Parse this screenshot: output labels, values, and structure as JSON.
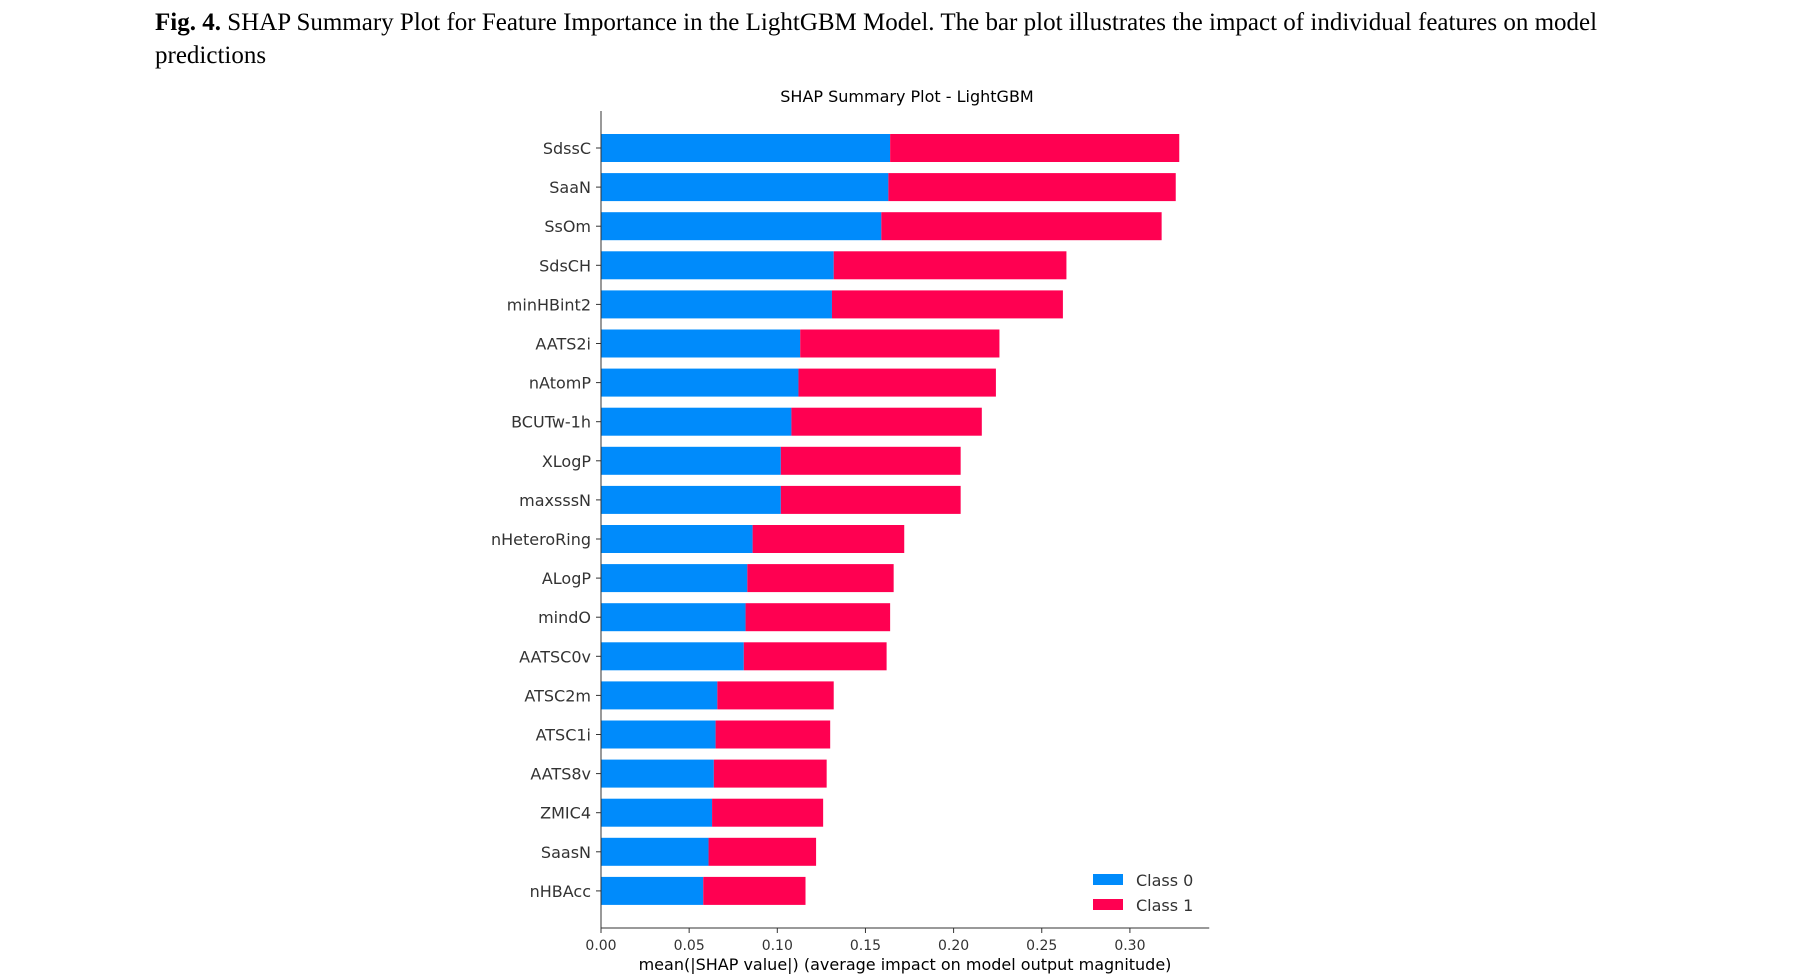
{
  "caption": {
    "label": "Fig. 4.",
    "text": "SHAP Summary Plot for Feature Importance in the LightGBM Model. The bar plot illustrates the impact of individual features on model predictions"
  },
  "chart_data": {
    "type": "bar",
    "orientation": "horizontal",
    "stacked": true,
    "title": "SHAP Summary Plot - LightGBM",
    "xlabel": "mean(|SHAP value|) (average impact on model output magnitude)",
    "ylabel": "",
    "xlim": [
      0,
      0.345
    ],
    "xticks": [
      "0.00",
      "0.05",
      "0.10",
      "0.15",
      "0.20",
      "0.25",
      "0.30"
    ],
    "grid": false,
    "legend_position": "bottom-right",
    "categories": [
      "SdssC",
      "SaaN",
      "SsOm",
      "SdsCH",
      "minHBint2",
      "AATS2i",
      "nAtomP",
      "BCUTw-1h",
      "XLogP",
      "maxsssN",
      "nHeteroRing",
      "ALogP",
      "mindO",
      "AATSC0v",
      "ATSC2m",
      "ATSC1i",
      "AATS8v",
      "ZMIC4",
      "SaasN",
      "nHBAcc"
    ],
    "series": [
      {
        "name": "Class 0",
        "color": "#008bfb",
        "values": [
          0.164,
          0.163,
          0.159,
          0.132,
          0.131,
          0.113,
          0.112,
          0.108,
          0.102,
          0.102,
          0.086,
          0.083,
          0.082,
          0.081,
          0.066,
          0.065,
          0.064,
          0.063,
          0.061,
          0.058
        ]
      },
      {
        "name": "Class 1",
        "color": "#ff0051",
        "values": [
          0.164,
          0.163,
          0.159,
          0.132,
          0.131,
          0.113,
          0.112,
          0.108,
          0.102,
          0.102,
          0.086,
          0.083,
          0.082,
          0.081,
          0.066,
          0.065,
          0.064,
          0.063,
          0.061,
          0.058
        ]
      }
    ]
  }
}
